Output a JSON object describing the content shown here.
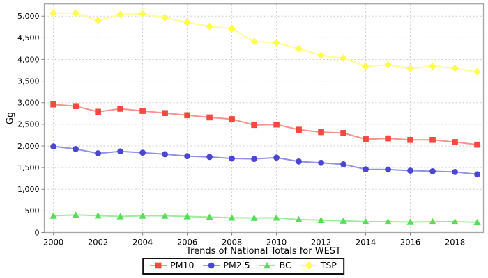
{
  "chart_data": {
    "type": "line",
    "xlabel": "Trends of National Totals for WEST",
    "ylabel": "Gg",
    "grid": true,
    "legend_position": "bottom",
    "xlim": [
      1999.59,
      2019.28
    ],
    "ylim": [
      0,
      5282
    ],
    "xticks": [
      2000,
      2002,
      2004,
      2006,
      2008,
      2010,
      2012,
      2014,
      2016,
      2018
    ],
    "yticks": [
      0,
      500,
      1000,
      1500,
      2000,
      2500,
      3000,
      3500,
      4000,
      4500,
      5000
    ],
    "x": [
      2000,
      2001,
      2002,
      2003,
      2004,
      2005,
      2006,
      2007,
      2008,
      2009,
      2010,
      2011,
      2012,
      2013,
      2014,
      2015,
      2016,
      2017,
      2018,
      2019
    ],
    "series": [
      {
        "name": "PM10",
        "marker": "square-icon",
        "color": "#f8473f",
        "line_color": "#f7928c",
        "values": [
          2960,
          2920,
          2790,
          2860,
          2810,
          2760,
          2710,
          2660,
          2620,
          2485,
          2495,
          2375,
          2320,
          2300,
          2155,
          2175,
          2140,
          2140,
          2090,
          2030
        ]
      },
      {
        "name": "PM2.5",
        "marker": "circle-icon",
        "color": "#4a46d3",
        "line_color": "#9391e4",
        "values": [
          1990,
          1930,
          1830,
          1875,
          1845,
          1810,
          1765,
          1745,
          1710,
          1700,
          1730,
          1640,
          1610,
          1575,
          1460,
          1455,
          1430,
          1415,
          1400,
          1345
        ]
      },
      {
        "name": "BC",
        "marker": "triangle-icon",
        "color": "#59dd59",
        "line_color": "#9deb9d",
        "values": [
          385,
          405,
          390,
          370,
          385,
          385,
          370,
          355,
          340,
          335,
          340,
          300,
          285,
          270,
          250,
          250,
          240,
          250,
          250,
          235
        ]
      },
      {
        "name": "TSP",
        "marker": "diamond-icon",
        "color": "#ffff4a",
        "line_color": "#ffff94",
        "values": [
          5070,
          5070,
          4900,
          5040,
          5055,
          4965,
          4855,
          4760,
          4710,
          4410,
          4385,
          4245,
          4095,
          4030,
          3840,
          3875,
          3790,
          3845,
          3795,
          3715
        ]
      }
    ]
  }
}
